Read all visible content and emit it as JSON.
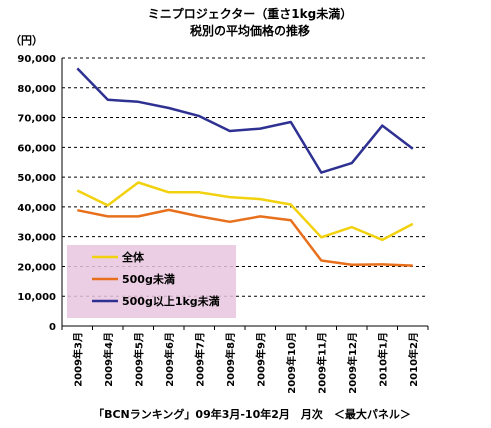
{
  "chart_data": {
    "type": "line",
    "title": "ミニプロジェクター（重さ1kg未満）",
    "subtitle": "税別の平均価格の推移",
    "ylabel": "（円）",
    "yticks": [
      "0",
      "10,000",
      "20,000",
      "30,000",
      "40,000",
      "50,000",
      "60,000",
      "70,000",
      "80,000",
      "90,000"
    ],
    "ylim": [
      0,
      90000
    ],
    "grid": "dashed-horizontal",
    "legend_position": "inside-bottom-left",
    "categories": [
      "2009年3月",
      "2009年4月",
      "2009年5月",
      "2009年6月",
      "2009年7月",
      "2009年8月",
      "2009年9月",
      "2009年10月",
      "2009年11月",
      "2009年12月",
      "2010年1月",
      "2010年2月"
    ],
    "series": [
      {
        "name": "全体",
        "color": "#F2D10E",
        "values": [
          45500,
          40500,
          48200,
          44900,
          44900,
          43300,
          42600,
          40800,
          29800,
          33200,
          28900,
          34300
        ]
      },
      {
        "name": "500g未満",
        "color": "#E8701C",
        "values": [
          38900,
          36800,
          36800,
          39000,
          36800,
          35000,
          36800,
          35500,
          22000,
          20600,
          20700,
          20300
        ]
      },
      {
        "name": "500g以上1kg未満",
        "color": "#2E3192",
        "values": [
          86500,
          76000,
          75300,
          73200,
          70500,
          65500,
          66300,
          68500,
          51500,
          54700,
          67300,
          59500
        ]
      }
    ],
    "source": "「BCNランキング」09年3月-10年2月　月次　＜最大パネル＞"
  }
}
